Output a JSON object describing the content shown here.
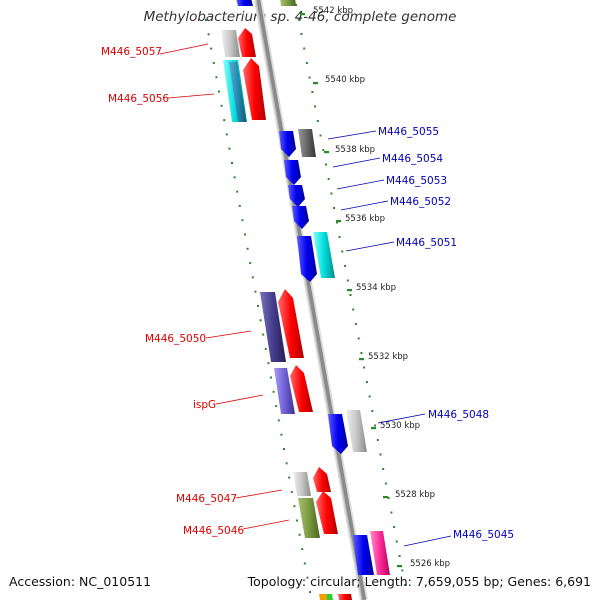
{
  "title": "Methylobacterium sp. 4-46, complete genome",
  "footer": {
    "accession": "Accession: NC_010511",
    "stats": "Topology: circular; Length: 7,659,055 bp; Genes: 6,691"
  },
  "colors": {
    "backbone": "#888888",
    "tick_dots": "#2a8a2a",
    "reverse_label": "#dd0000",
    "forward_label": "#0000bb"
  },
  "ticks": [
    "5542 kbp",
    "5540 kbp",
    "5538 kbp",
    "5536 kbp",
    "5534 kbp",
    "5532 kbp",
    "5530 kbp",
    "5528 kbp",
    "5526 kbp"
  ],
  "genes_reverse": [
    {
      "label": "M446_5057",
      "color": "red"
    },
    {
      "label": "M446_5056",
      "color": "red"
    },
    {
      "label": "M446_5050",
      "color": "red"
    },
    {
      "label": "ispG",
      "color": "red"
    },
    {
      "label": "M446_5047",
      "color": "red"
    },
    {
      "label": "M446_5046",
      "color": "red"
    }
  ],
  "genes_forward": [
    {
      "label": "M446_5055",
      "color": "blue"
    },
    {
      "label": "M446_5054",
      "color": "blue"
    },
    {
      "label": "M446_5053",
      "color": "blue"
    },
    {
      "label": "M446_5052",
      "color": "blue"
    },
    {
      "label": "M446_5051",
      "color": "blue"
    },
    {
      "label": "M446_5048",
      "color": "blue"
    },
    {
      "label": "M446_5045",
      "color": "blue"
    }
  ]
}
